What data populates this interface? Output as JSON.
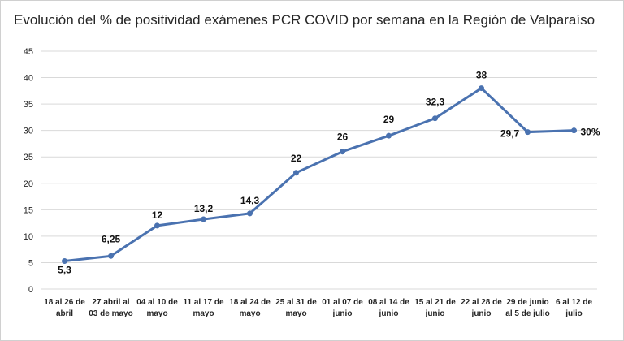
{
  "colors": {
    "series": "#4a72b0",
    "grid": "#d9d9d9",
    "text": "#262626"
  },
  "chart_data": {
    "type": "line",
    "title": "Evolución del % de positividad exámenes PCR COVID por semana en la Región de Valparaíso",
    "xlabel": "",
    "ylabel": "",
    "ylim": [
      0,
      45
    ],
    "yticks": [
      0,
      5,
      10,
      15,
      20,
      25,
      30,
      35,
      40,
      45
    ],
    "grid": true,
    "legend": "none",
    "categories": [
      [
        "18 al 26 de",
        "abril"
      ],
      [
        "27 abril al",
        "03 de mayo"
      ],
      [
        "04 al 10 de",
        "mayo"
      ],
      [
        "11 al 17 de",
        "mayo"
      ],
      [
        "18 al 24 de",
        "mayo"
      ],
      [
        "25 al 31 de",
        "mayo"
      ],
      [
        "01 al 07 de",
        "junio"
      ],
      [
        "08 al 14 de",
        "junio"
      ],
      [
        "15 al 21 de",
        "junio"
      ],
      [
        "22 al 28 de",
        "junio"
      ],
      [
        "29 de junio",
        "al 5 de julio"
      ],
      [
        "6 al  12 de",
        "julio"
      ]
    ],
    "values": [
      5.3,
      6.25,
      12,
      13.2,
      14.3,
      22,
      26,
      29,
      32.3,
      38,
      29.7,
      30
    ],
    "data_labels": [
      "5,3",
      "6,25",
      "12",
      "13,2",
      "14,3",
      "22",
      "26",
      "29",
      "32,3",
      "38",
      "29,7",
      "30%"
    ]
  }
}
